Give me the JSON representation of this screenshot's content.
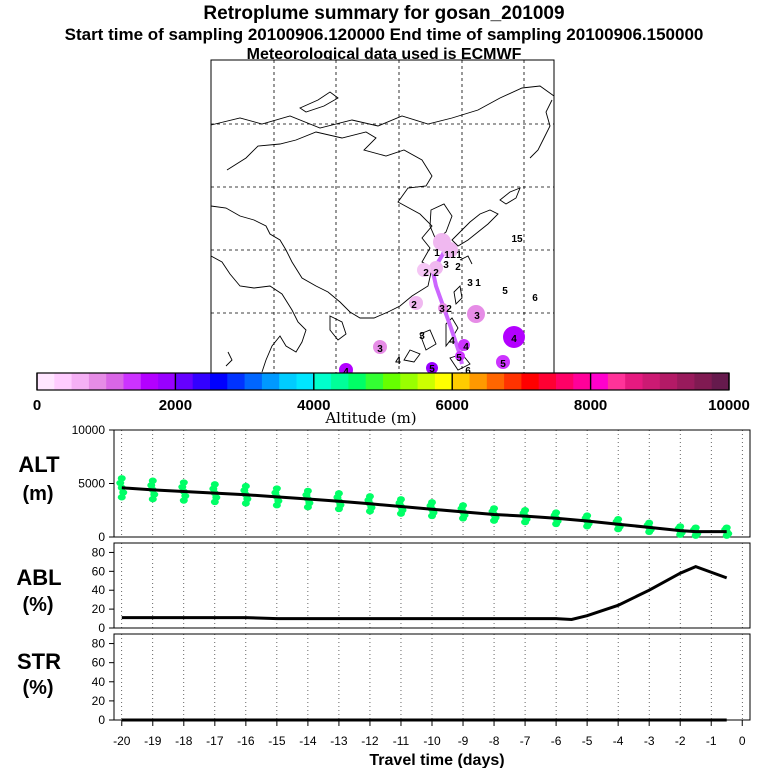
{
  "header": {
    "title": "Retroplume summary for gosan_201009",
    "sampling": "Start time of sampling 20100906.120000     End time of sampling 20100906.150000",
    "met": "Meteorological data used is ECMWF"
  },
  "colorbar": {
    "ticks": [
      "0",
      "2000",
      "4000",
      "6000",
      "8000",
      "10000"
    ],
    "label": "Altitude (m)",
    "colors": [
      "#ffe6ff",
      "#ffccff",
      "#f5b0f5",
      "#e68ce6",
      "#d966e6",
      "#cc33ff",
      "#b300ff",
      "#9900ff",
      "#6600ff",
      "#3300ff",
      "#0000ff",
      "#0033ff",
      "#0066ff",
      "#0099ff",
      "#00ccff",
      "#00e6ff",
      "#00ffcc",
      "#00ff99",
      "#00ff66",
      "#33ff33",
      "#66ff00",
      "#99ff00",
      "#ccff00",
      "#ffff00",
      "#ffcc00",
      "#ff9900",
      "#ff6600",
      "#ff3300",
      "#ff0000",
      "#ff0033",
      "#ff0066",
      "#ff0099",
      "#ff00cc",
      "#ff3399",
      "#e61a80",
      "#cc1a73",
      "#b31a66",
      "#991a5c",
      "#801a52",
      "#661a4d"
    ]
  },
  "map_labels": [
    {
      "t": "15"
    },
    {
      "t": "1"
    },
    {
      "t": "1"
    },
    {
      "t": "1"
    },
    {
      "t": "1"
    },
    {
      "t": "2"
    },
    {
      "t": "2"
    },
    {
      "t": "3"
    },
    {
      "t": "2"
    },
    {
      "t": "3"
    },
    {
      "t": "1"
    },
    {
      "t": "5"
    },
    {
      "t": "6"
    },
    {
      "t": "2"
    },
    {
      "t": "3"
    },
    {
      "t": "2"
    },
    {
      "t": "3"
    },
    {
      "t": "3"
    },
    {
      "t": "3"
    },
    {
      "t": "4"
    },
    {
      "t": "4"
    },
    {
      "t": "4"
    },
    {
      "t": "4"
    },
    {
      "t": "5"
    },
    {
      "t": "5"
    },
    {
      "t": "4"
    },
    {
      "t": "6"
    },
    {
      "t": "5"
    }
  ],
  "chart_data": [
    {
      "type": "line",
      "title": "ALT",
      "ylabel": "ALT (m)",
      "y_label_line1": "ALT",
      "y_label_line2": "(m)",
      "ylim": [
        0,
        10000
      ],
      "yticks": [
        "0",
        "5000",
        "10000"
      ],
      "x": [
        -20,
        -19,
        -18,
        -17,
        -16,
        -15,
        -14,
        -13,
        -12,
        -11,
        -10,
        -9,
        -8,
        -7,
        -6,
        -5,
        -4,
        -3,
        -2,
        -1.5,
        -0.5
      ],
      "values": [
        4600,
        4400,
        4250,
        4100,
        3950,
        3750,
        3550,
        3350,
        3100,
        2850,
        2600,
        2350,
        2100,
        1950,
        1750,
        1500,
        1200,
        900,
        600,
        500,
        500
      ],
      "dots_color": "#00ff66"
    },
    {
      "type": "line",
      "title": "ABL",
      "ylabel": "ABL (%)",
      "y_label_line1": "ABL",
      "y_label_line2": "(%)",
      "ylim": [
        0,
        90
      ],
      "yticks": [
        "0",
        "20",
        "40",
        "60",
        "80"
      ],
      "x": [
        -20,
        -19,
        -18,
        -17,
        -16,
        -15,
        -14,
        -13,
        -12,
        -11,
        -10,
        -9,
        -8,
        -7,
        -6,
        -5.5,
        -5,
        -4,
        -3,
        -2,
        -1.5,
        -0.5
      ],
      "values": [
        11,
        11,
        11,
        11,
        11,
        10,
        10,
        10,
        10,
        10,
        10,
        10,
        10,
        10,
        10,
        9,
        13,
        24,
        40,
        58,
        65,
        53
      ]
    },
    {
      "type": "line",
      "title": "STR",
      "ylabel": "STR (%)",
      "y_label_line1": "STR",
      "y_label_line2": "(%)",
      "ylim": [
        0,
        90
      ],
      "yticks": [
        "0",
        "20",
        "40",
        "60",
        "80"
      ],
      "x": [
        -20,
        -0.5
      ],
      "values": [
        0,
        0
      ]
    }
  ],
  "xaxis": {
    "ticks": [
      "-20",
      "-19",
      "-18",
      "-17",
      "-16",
      "-15",
      "-14",
      "-13",
      "-12",
      "-11",
      "-10",
      "-9",
      "-8",
      "-7",
      "-6",
      "-5",
      "-4",
      "-3",
      "-2",
      "-1",
      "0"
    ],
    "label": "Travel time (days)"
  }
}
